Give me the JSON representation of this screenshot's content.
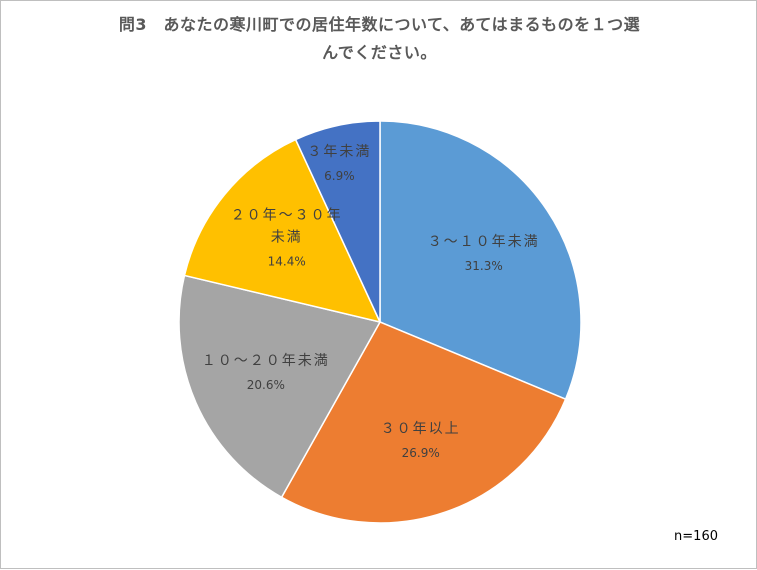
{
  "chart_data": {
    "type": "pie",
    "title_lines": [
      "問3　あなたの寒川町での居住年数について、あてはまるものを１つ選",
      "んでください。"
    ],
    "note": "n=160",
    "slices": [
      {
        "label_lines": [
          "３～１０年未満"
        ],
        "value": 31.3,
        "value_label": "31.3%",
        "color": "#5b9bd5"
      },
      {
        "label_lines": [
          "３０年以上"
        ],
        "value": 26.9,
        "value_label": "26.9%",
        "color": "#ed7d31"
      },
      {
        "label_lines": [
          "１０～２０年未満"
        ],
        "value": 20.6,
        "value_label": "20.6%",
        "color": "#a5a5a5"
      },
      {
        "label_lines": [
          "２０年～３０年",
          "未満"
        ],
        "value": 14.4,
        "value_label": "14.4%",
        "color": "#ffc000"
      },
      {
        "label_lines": [
          "３年未満"
        ],
        "value": 6.9,
        "value_label": "6.9%",
        "color": "#4472c4"
      }
    ],
    "start_angle": "12 o'clock",
    "direction": "clockwise",
    "legend": "none"
  }
}
